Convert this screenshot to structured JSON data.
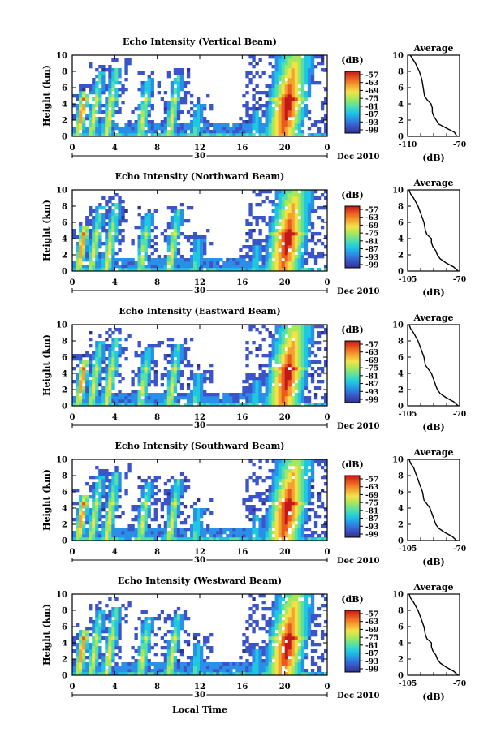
{
  "chart_data": [
    {
      "type": "heatmap",
      "title": "Echo Intensity (Vertical Beam)",
      "ylabel": "Height (km)",
      "x_ticks": [
        "0",
        "4",
        "8",
        "12",
        "16",
        "20",
        "0"
      ],
      "y_ticks": [
        "0",
        "2",
        "4",
        "6",
        "8",
        "10"
      ],
      "xlim": [
        0,
        24
      ],
      "ylim": [
        0,
        10
      ],
      "date_day": "30",
      "date_month": "Dec 2010",
      "colorbar": {
        "label": "(dB)",
        "ticks": [
          "-57",
          "-63",
          "-69",
          "-75",
          "-81",
          "-87",
          "-93",
          "-99"
        ]
      },
      "average": {
        "title": "Average",
        "xlabel": "(dB)",
        "x_ticks": [
          "-110",
          "-70"
        ],
        "xlim": [
          -110,
          -70
        ],
        "y_ticks": [
          "0",
          "2",
          "4",
          "6",
          "8",
          "10"
        ],
        "profile": [
          [
            -72,
            0
          ],
          [
            -74,
            0.5
          ],
          [
            -80,
            1
          ],
          [
            -86,
            1.5
          ],
          [
            -88,
            2
          ],
          [
            -90,
            2.5
          ],
          [
            -91,
            3
          ],
          [
            -91,
            3.5
          ],
          [
            -92,
            4
          ],
          [
            -95,
            4.5
          ],
          [
            -97,
            5
          ],
          [
            -98,
            6
          ],
          [
            -99,
            7
          ],
          [
            -101,
            8
          ],
          [
            -104,
            9
          ],
          [
            -106,
            9.5
          ],
          [
            -108,
            10
          ]
        ]
      }
    },
    {
      "type": "heatmap",
      "title": "Echo Intensity (Northward Beam)",
      "ylabel": "Height (km)",
      "x_ticks": [
        "0",
        "4",
        "8",
        "12",
        "16",
        "20",
        "0"
      ],
      "y_ticks": [
        "0",
        "2",
        "4",
        "6",
        "8",
        "10"
      ],
      "xlim": [
        0,
        24
      ],
      "ylim": [
        0,
        10
      ],
      "date_day": "30",
      "date_month": "Dec 2010",
      "colorbar": {
        "label": "(dB)",
        "ticks": [
          "-57",
          "-63",
          "-69",
          "-75",
          "-81",
          "-87",
          "-93",
          "-99"
        ]
      },
      "average": {
        "title": "Average",
        "xlabel": "(dB)",
        "x_ticks": [
          "-105",
          "-70"
        ],
        "xlim": [
          -105,
          -70
        ],
        "y_ticks": [
          "0",
          "2",
          "4",
          "6",
          "8",
          "10"
        ],
        "profile": [
          [
            -71,
            0
          ],
          [
            -74,
            0.5
          ],
          [
            -79,
            1
          ],
          [
            -83,
            1.5
          ],
          [
            -85,
            2
          ],
          [
            -86,
            2.5
          ],
          [
            -88,
            3
          ],
          [
            -89,
            3.5
          ],
          [
            -89,
            4
          ],
          [
            -92,
            4.5
          ],
          [
            -93,
            5
          ],
          [
            -94,
            6
          ],
          [
            -96,
            7
          ],
          [
            -98,
            8
          ],
          [
            -101,
            9
          ],
          [
            -103,
            9.5
          ],
          [
            -104,
            10
          ]
        ]
      }
    },
    {
      "type": "heatmap",
      "title": "Echo Intensity (Eastward Beam)",
      "ylabel": "Height (km)",
      "x_ticks": [
        "0",
        "4",
        "8",
        "12",
        "16",
        "20",
        "0"
      ],
      "y_ticks": [
        "0",
        "2",
        "4",
        "6",
        "8",
        "10"
      ],
      "xlim": [
        0,
        24
      ],
      "ylim": [
        0,
        10
      ],
      "date_day": "30",
      "date_month": "Dec 2010",
      "colorbar": {
        "label": "(dB)",
        "ticks": [
          "-57",
          "-63",
          "-69",
          "-75",
          "-81",
          "-87",
          "-93",
          "-99"
        ]
      },
      "average": {
        "title": "Average",
        "xlabel": "(dB)",
        "x_ticks": [
          "-105",
          "-70"
        ],
        "xlim": [
          -105,
          -70
        ],
        "y_ticks": [
          "0",
          "2",
          "4",
          "6",
          "8",
          "10"
        ],
        "profile": [
          [
            -71,
            0
          ],
          [
            -74,
            0.5
          ],
          [
            -79,
            1
          ],
          [
            -83,
            1.5
          ],
          [
            -85,
            2
          ],
          [
            -86,
            2.5
          ],
          [
            -87,
            3
          ],
          [
            -88,
            3.5
          ],
          [
            -89,
            4
          ],
          [
            -91,
            4.5
          ],
          [
            -93,
            5
          ],
          [
            -94,
            6
          ],
          [
            -96,
            7
          ],
          [
            -98,
            8
          ],
          [
            -101,
            9
          ],
          [
            -103,
            9.5
          ],
          [
            -104,
            10
          ]
        ]
      }
    },
    {
      "type": "heatmap",
      "title": "Echo Intensity (Southward Beam)",
      "ylabel": "Height (km)",
      "x_ticks": [
        "0",
        "4",
        "8",
        "12",
        "16",
        "20",
        "0"
      ],
      "y_ticks": [
        "0",
        "2",
        "4",
        "6",
        "8",
        "10"
      ],
      "xlim": [
        0,
        24
      ],
      "ylim": [
        0,
        10
      ],
      "date_day": "30",
      "date_month": "Dec 2010",
      "colorbar": {
        "label": "(dB)",
        "ticks": [
          "-57",
          "-63",
          "-69",
          "-75",
          "-81",
          "-87",
          "-93",
          "-99"
        ]
      },
      "average": {
        "title": "Average",
        "xlabel": "(dB)",
        "x_ticks": [
          "-105",
          "-70"
        ],
        "xlim": [
          -105,
          -70
        ],
        "y_ticks": [
          "0",
          "2",
          "4",
          "6",
          "8",
          "10"
        ],
        "profile": [
          [
            -72,
            0
          ],
          [
            -75,
            0.5
          ],
          [
            -80,
            1
          ],
          [
            -84,
            1.5
          ],
          [
            -86,
            2
          ],
          [
            -87,
            2.5
          ],
          [
            -88,
            3
          ],
          [
            -89,
            3.5
          ],
          [
            -90,
            4
          ],
          [
            -92,
            4.5
          ],
          [
            -94,
            5
          ],
          [
            -95,
            6
          ],
          [
            -97,
            7
          ],
          [
            -99,
            8
          ],
          [
            -101,
            9
          ],
          [
            -103,
            9.5
          ],
          [
            -104,
            10
          ]
        ]
      }
    },
    {
      "type": "heatmap",
      "title": "Echo Intensity (Westward Beam)",
      "ylabel": "Height (km)",
      "x_ticks": [
        "0",
        "4",
        "8",
        "12",
        "16",
        "20",
        "0"
      ],
      "y_ticks": [
        "0",
        "2",
        "4",
        "6",
        "8",
        "10"
      ],
      "xlim": [
        0,
        24
      ],
      "ylim": [
        0,
        10
      ],
      "date_day": "30",
      "date_month": "Dec 2010",
      "xlabel": "Local Time",
      "colorbar": {
        "label": "(dB)",
        "ticks": [
          "-57",
          "-63",
          "-69",
          "-75",
          "-81",
          "-87",
          "-93",
          "-99"
        ]
      },
      "average": {
        "title": "Average",
        "xlabel": "(dB)",
        "x_ticks": [
          "-105",
          "-70"
        ],
        "xlim": [
          -105,
          -70
        ],
        "y_ticks": [
          "0",
          "2",
          "4",
          "6",
          "8",
          "10"
        ],
        "profile": [
          [
            -71,
            0
          ],
          [
            -74,
            0.5
          ],
          [
            -79,
            1
          ],
          [
            -83,
            1.5
          ],
          [
            -85,
            2
          ],
          [
            -86,
            2.5
          ],
          [
            -88,
            3
          ],
          [
            -89,
            3.5
          ],
          [
            -89,
            4
          ],
          [
            -92,
            4.5
          ],
          [
            -93,
            5
          ],
          [
            -94,
            6
          ],
          [
            -96,
            7
          ],
          [
            -98,
            8
          ],
          [
            -101,
            9
          ],
          [
            -103,
            9.5
          ],
          [
            -104,
            10
          ]
        ]
      }
    }
  ],
  "colors": {
    "colormap": [
      "#30338f",
      "#3b55c8",
      "#2a8fe6",
      "#1fc8e0",
      "#54e0a8",
      "#a6e85a",
      "#f2e24a",
      "#f5a030",
      "#ea5a1e",
      "#c21818"
    ]
  },
  "echo_events": [
    {
      "hour": 1.2,
      "top_km": 5.5,
      "peak_km": 3.0,
      "strength": 0.85
    },
    {
      "hour": 2.7,
      "top_km": 8.0,
      "peak_km": 2.0,
      "strength": 0.6
    },
    {
      "hour": 4.2,
      "top_km": 8.5,
      "peak_km": 2.0,
      "strength": 0.65
    },
    {
      "hour": 7.2,
      "top_km": 7.0,
      "peak_km": 2.0,
      "strength": 0.55
    },
    {
      "hour": 10.0,
      "top_km": 7.5,
      "peak_km": 2.0,
      "strength": 0.6
    },
    {
      "hour": 12.0,
      "top_km": 4.0,
      "peak_km": 1.0,
      "strength": 0.35
    },
    {
      "hour": 17.5,
      "top_km": 3.0,
      "peak_km": 1.0,
      "strength": 0.3
    },
    {
      "hour": 21.0,
      "top_km": 10.0,
      "peak_km": 3.5,
      "strength": 1.0
    }
  ]
}
